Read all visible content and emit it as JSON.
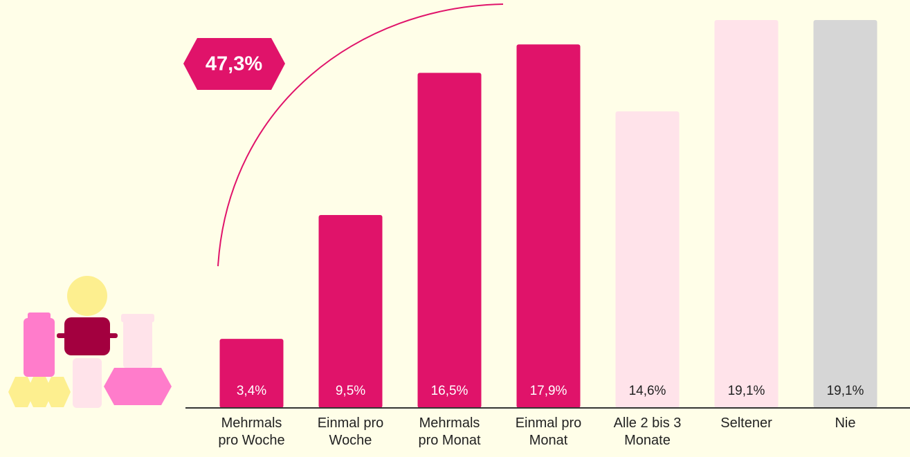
{
  "chart_data": {
    "type": "bar",
    "categories": [
      "Mehrmals pro Woche",
      "Einmal pro Woche",
      "Mehrmals pro Monat",
      "Einmal pro Monat",
      "Alle 2 bis 3 Monate",
      "Seltener",
      "Nie"
    ],
    "values": [
      3.4,
      9.5,
      16.5,
      17.9,
      14.6,
      19.1,
      19.1
    ],
    "value_labels": [
      "3,4%",
      "9,5%",
      "16,5%",
      "17,9%",
      "14,6%",
      "19,1%",
      "19,1%"
    ],
    "colors": [
      "#e0136a",
      "#e0136a",
      "#e0136a",
      "#e0136a",
      "#ffe3ea",
      "#ffe3ea",
      "#d6d6d6"
    ],
    "ylim": [
      0,
      19.1
    ],
    "annotation": "47,3%"
  }
}
